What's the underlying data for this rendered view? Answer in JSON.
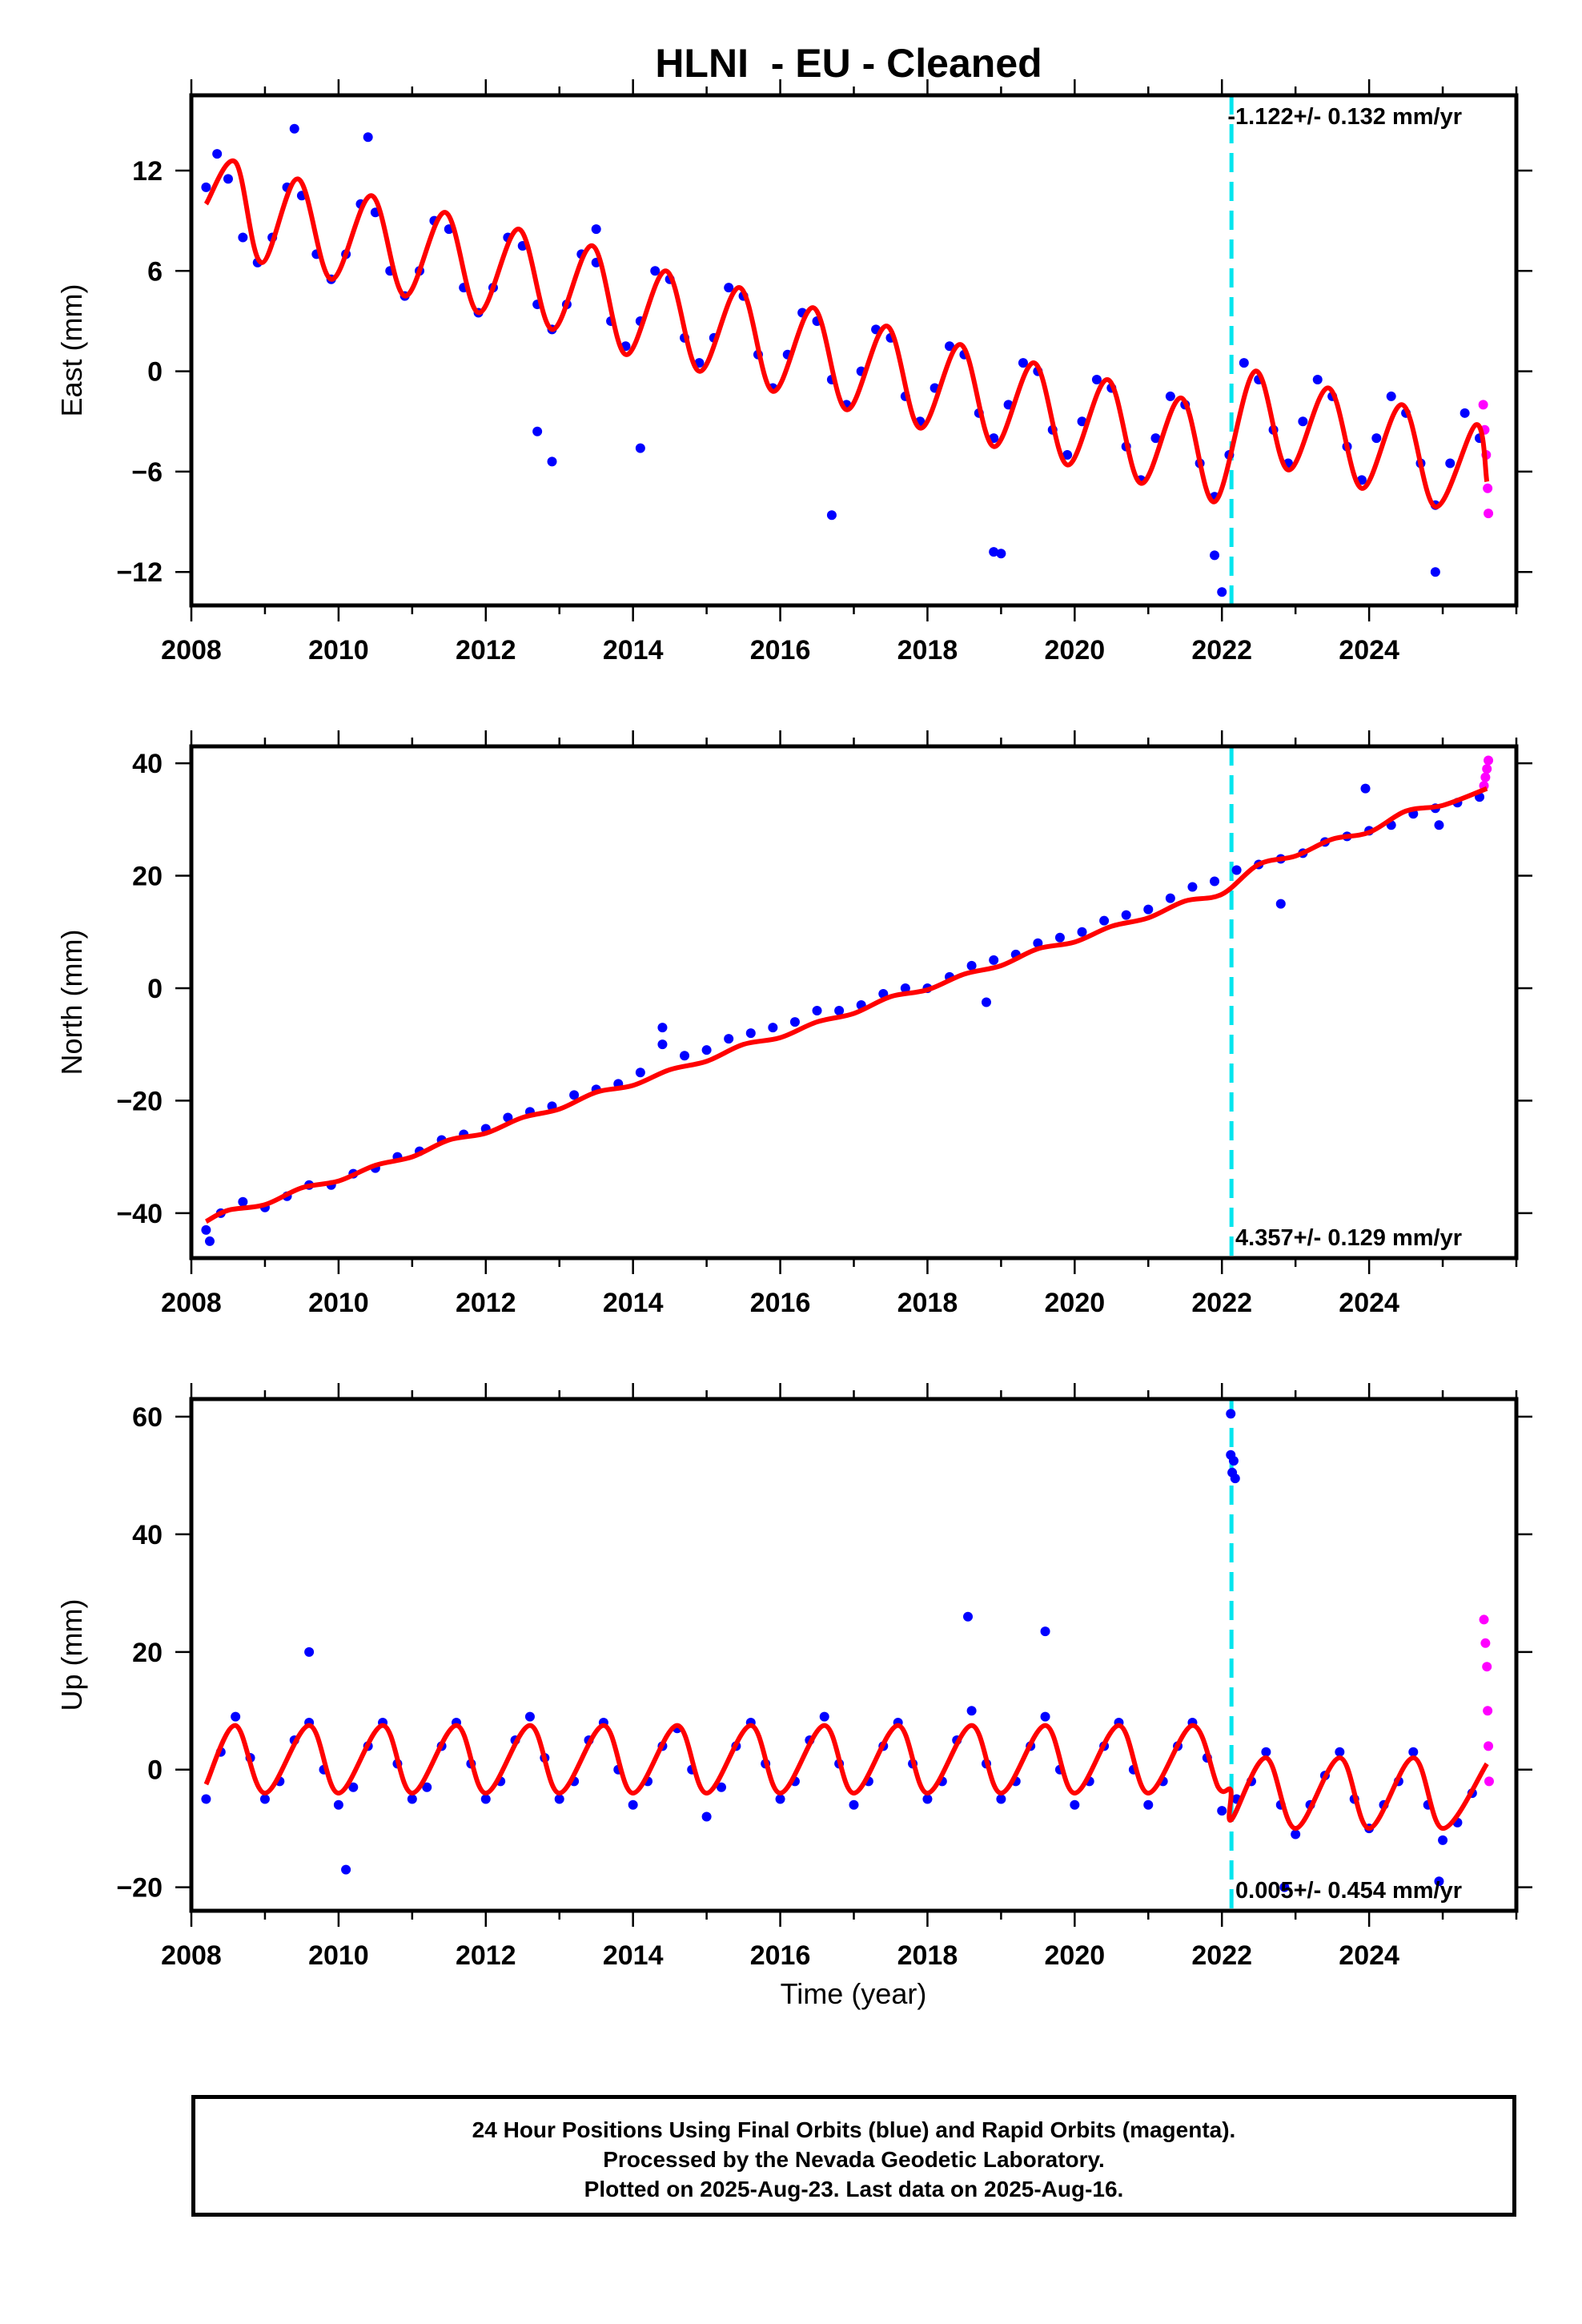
{
  "title": "HLNI  - EU - Cleaned",
  "xlabel": "Time (year)",
  "caption": [
    "24 Hour Positions Using Final Orbits (blue) and Rapid Orbits (magenta).",
    "Processed by the Nevada Geodetic Laboratory.",
    "Plotted on 2025-Aug-23. Last data on 2025-Aug-16."
  ],
  "colors": {
    "final": "#0000ff",
    "rapid": "#ff00ff",
    "model": "#ff0000",
    "event": "#00e5ee",
    "axis": "#000000"
  },
  "chart_data": [
    {
      "type": "scatter",
      "component": "East",
      "ylabel": "East (mm)",
      "rate_label": "-1.122+/- 0.132 mm/yr",
      "rate_position": "top-right",
      "xlim": [
        2008.0,
        2026.0
      ],
      "ylim": [
        -14,
        16.5
      ],
      "xticks": [
        2008,
        2010,
        2012,
        2014,
        2016,
        2018,
        2020,
        2022,
        2024
      ],
      "yticks": [
        -12,
        -6,
        0,
        6,
        12
      ],
      "event_line_x": 2022.13,
      "series": [
        {
          "role": "model",
          "x": [
            2008.2,
            2008.6,
            2008.95,
            2009.45,
            2009.9,
            2010.45,
            2010.9,
            2011.45,
            2011.9,
            2012.45,
            2012.9,
            2013.45,
            2013.9,
            2014.45,
            2014.9,
            2015.45,
            2015.9,
            2016.45,
            2016.9,
            2017.45,
            2017.9,
            2018.45,
            2018.9,
            2019.45,
            2019.9,
            2020.45,
            2020.9,
            2021.45,
            2021.9,
            2022.45,
            2022.9,
            2023.45,
            2023.9,
            2024.45,
            2024.9,
            2025.45,
            2025.6
          ],
          "y": [
            10,
            12.5,
            6.5,
            11.5,
            5.5,
            10.5,
            4.5,
            9.5,
            3.5,
            8.5,
            2.5,
            7.5,
            1,
            6,
            0,
            5,
            -1.2,
            3.8,
            -2.3,
            2.7,
            -3.4,
            1.6,
            -4.5,
            0.5,
            -5.6,
            -0.5,
            -6.7,
            -1.6,
            -7.8,
            0,
            -5.9,
            -1,
            -7,
            -2,
            -8.1,
            -3.2,
            -6.6
          ]
        },
        {
          "role": "final",
          "x": [
            2008.2,
            2008.35,
            2008.5,
            2008.7,
            2008.9,
            2009.1,
            2009.3,
            2009.5,
            2009.7,
            2009.9,
            2010.1,
            2010.3,
            2010.5,
            2010.7,
            2010.9,
            2011.1,
            2011.3,
            2011.5,
            2011.7,
            2011.9,
            2012.1,
            2012.3,
            2012.5,
            2012.7,
            2012.9,
            2013.1,
            2013.3,
            2013.5,
            2013.7,
            2013.9,
            2014.1,
            2014.3,
            2014.5,
            2014.7,
            2014.9,
            2015.1,
            2015.3,
            2015.5,
            2015.7,
            2015.9,
            2016.1,
            2016.3,
            2016.5,
            2016.7,
            2016.9,
            2017.1,
            2017.3,
            2017.5,
            2017.7,
            2017.9,
            2018.1,
            2018.3,
            2018.5,
            2018.7,
            2018.9,
            2019.1,
            2019.3,
            2019.5,
            2019.7,
            2019.9,
            2020.1,
            2020.3,
            2020.5,
            2020.7,
            2020.9,
            2021.1,
            2021.3,
            2021.5,
            2021.7,
            2021.9,
            2022.1,
            2022.3,
            2022.5,
            2022.7,
            2022.9,
            2023.1,
            2023.3,
            2023.5,
            2023.7,
            2023.9,
            2024.1,
            2024.3,
            2024.5,
            2024.7,
            2024.9,
            2025.1,
            2025.3,
            2025.5,
            2012.7,
            2012.9,
            2014.1,
            2018.9,
            2019.0,
            2016.7,
            2021.9,
            2024.9,
            2022.0,
            2013.5,
            2009.4,
            2010.4
          ],
          "y": [
            11,
            13,
            11.5,
            8,
            6.5,
            8,
            11,
            10.5,
            7,
            5.5,
            7,
            10,
            9.5,
            6,
            4.5,
            6,
            9,
            8.5,
            5,
            3.5,
            5,
            8,
            7.5,
            4,
            2.5,
            4,
            7,
            6.5,
            3,
            1.5,
            3,
            6,
            5.5,
            2,
            0.5,
            2,
            5,
            4.5,
            1,
            -1,
            1,
            3.5,
            3,
            -0.5,
            -2,
            0,
            2.5,
            2,
            -1.5,
            -3,
            -1,
            1.5,
            1,
            -2.5,
            -4,
            -2,
            0.5,
            0,
            -3.5,
            -5,
            -3,
            -0.5,
            -1,
            -4.5,
            -6.5,
            -4,
            -1.5,
            -2,
            -5.5,
            -7.5,
            -5,
            0.5,
            -0.5,
            -3.5,
            -5.5,
            -3,
            -0.5,
            -1.5,
            -4.5,
            -6.5,
            -4,
            -1.5,
            -2.5,
            -5.5,
            -8,
            -5.5,
            -2.5,
            -4,
            -3.6,
            -5.4,
            -4.6,
            -10.8,
            -10.9,
            -8.6,
            -11,
            -12,
            -13.2,
            8.5,
            14.5,
            14
          ]
        },
        {
          "role": "rapid",
          "x": [
            2025.55,
            2025.57,
            2025.59,
            2025.61,
            2025.62
          ],
          "y": [
            -2,
            -3.5,
            -5,
            -7,
            -8.5
          ]
        }
      ]
    },
    {
      "type": "scatter",
      "component": "North",
      "ylabel": "North (mm)",
      "rate_label": "4.357+/- 0.129 mm/yr",
      "rate_position": "bottom-right",
      "xlim": [
        2008.0,
        2026.0
      ],
      "ylim": [
        -48,
        43
      ],
      "xticks": [
        2008,
        2010,
        2012,
        2014,
        2016,
        2018,
        2020,
        2022,
        2024
      ],
      "yticks": [
        -40,
        -20,
        0,
        20,
        40
      ],
      "event_line_x": 2022.13,
      "series": [
        {
          "role": "model",
          "x": [
            2008.2,
            2008.5,
            2009.0,
            2009.5,
            2010.0,
            2010.5,
            2011.0,
            2011.5,
            2012.0,
            2012.5,
            2013.0,
            2013.5,
            2014.0,
            2014.5,
            2015.0,
            2015.5,
            2016.0,
            2016.5,
            2017.0,
            2017.5,
            2018.0,
            2018.5,
            2019.0,
            2019.5,
            2020.0,
            2020.5,
            2021.0,
            2021.5,
            2022.0,
            2022.5,
            2023.0,
            2023.5,
            2024.0,
            2024.5,
            2025.0,
            2025.6
          ],
          "y": [
            -41.5,
            -39.5,
            -38.5,
            -35.5,
            -34.3,
            -31.5,
            -30,
            -27,
            -25.8,
            -23,
            -21.5,
            -18.5,
            -17.3,
            -14.5,
            -13,
            -10,
            -8.8,
            -6,
            -4.5,
            -1.5,
            -0.3,
            2.5,
            4,
            7,
            8.2,
            11,
            12.5,
            15.5,
            16.7,
            22,
            23.5,
            26.5,
            27.7,
            31.5,
            32.5,
            35.5
          ]
        },
        {
          "role": "final",
          "x": [
            2008.2,
            2008.4,
            2008.7,
            2009.0,
            2009.3,
            2009.6,
            2009.9,
            2010.2,
            2010.5,
            2010.8,
            2011.1,
            2011.4,
            2011.7,
            2012.0,
            2012.3,
            2012.6,
            2012.9,
            2013.2,
            2013.5,
            2013.8,
            2014.1,
            2014.4,
            2014.7,
            2015.0,
            2015.3,
            2015.6,
            2015.9,
            2016.2,
            2016.5,
            2016.8,
            2017.1,
            2017.4,
            2017.7,
            2018.0,
            2018.3,
            2018.6,
            2018.9,
            2019.2,
            2019.5,
            2019.8,
            2020.1,
            2020.4,
            2020.7,
            2021.0,
            2021.3,
            2021.6,
            2021.9,
            2022.2,
            2022.5,
            2022.8,
            2023.1,
            2023.4,
            2023.7,
            2024.0,
            2024.3,
            2024.6,
            2024.9,
            2025.2,
            2025.5,
            2008.25,
            2014.4,
            2018.8,
            2022.8,
            2023.95,
            2024.95
          ],
          "y": [
            -43,
            -40,
            -38,
            -39,
            -37,
            -35,
            -35,
            -33,
            -32,
            -30,
            -29,
            -27,
            -26,
            -25,
            -23,
            -22,
            -21,
            -19,
            -18,
            -17,
            -15,
            -10,
            -12,
            -11,
            -9,
            -8,
            -7,
            -6,
            -4,
            -4,
            -3,
            -1,
            0,
            0,
            2,
            4,
            5,
            6,
            8,
            9,
            10,
            12,
            13,
            14,
            16,
            18,
            19,
            21,
            22,
            23,
            24,
            26,
            27,
            28,
            29,
            31,
            32,
            33,
            34,
            -45,
            -7,
            -2.5,
            15,
            35.5,
            29
          ]
        },
        {
          "role": "rapid",
          "x": [
            2025.56,
            2025.58,
            2025.6,
            2025.62
          ],
          "y": [
            36,
            37.5,
            39,
            40.5
          ]
        }
      ]
    },
    {
      "type": "scatter",
      "component": "Up",
      "ylabel": "Up (mm)",
      "rate_label": "0.005+/- 0.454 mm/yr",
      "rate_position": "bottom-right",
      "xlim": [
        2008.0,
        2026.0
      ],
      "ylim": [
        -24,
        63
      ],
      "xticks": [
        2008,
        2010,
        2012,
        2014,
        2016,
        2018,
        2020,
        2022,
        2024
      ],
      "yticks": [
        -20,
        0,
        20,
        40,
        60
      ],
      "event_line_x": 2022.13,
      "series": [
        {
          "role": "model",
          "x": [
            2008.2,
            2008.6,
            2009.0,
            2009.6,
            2010.0,
            2010.6,
            2011.0,
            2011.6,
            2012.0,
            2012.6,
            2013.0,
            2013.6,
            2014.0,
            2014.6,
            2015.0,
            2015.6,
            2016.0,
            2016.6,
            2017.0,
            2017.6,
            2018.0,
            2018.6,
            2019.0,
            2019.6,
            2020.0,
            2020.6,
            2021.0,
            2021.6,
            2021.95,
            2022.12,
            2022.13,
            2022.6,
            2023.0,
            2023.6,
            2024.0,
            2024.6,
            2025.0,
            2025.6
          ],
          "y": [
            -2.5,
            7.5,
            -4,
            7.5,
            -4,
            7.5,
            -4,
            7.5,
            -4,
            7.5,
            -4,
            7.5,
            -4,
            7.5,
            -4,
            7.5,
            -4,
            7.5,
            -4,
            7.5,
            -4,
            7.5,
            -4,
            7.5,
            -4,
            7.5,
            -4,
            7.5,
            -3,
            -3.5,
            -8.5,
            2,
            -10,
            2,
            -10,
            2,
            -10,
            1
          ]
        },
        {
          "role": "final",
          "x": [
            2008.2,
            2008.4,
            2008.6,
            2008.8,
            2009.0,
            2009.2,
            2009.4,
            2009.6,
            2009.8,
            2010.0,
            2010.2,
            2010.4,
            2010.6,
            2010.8,
            2011.0,
            2011.2,
            2011.4,
            2011.6,
            2011.8,
            2012.0,
            2012.2,
            2012.4,
            2012.6,
            2012.8,
            2013.0,
            2013.2,
            2013.4,
            2013.6,
            2013.8,
            2014.0,
            2014.2,
            2014.4,
            2014.6,
            2014.8,
            2015.0,
            2015.2,
            2015.4,
            2015.6,
            2015.8,
            2016.0,
            2016.2,
            2016.4,
            2016.6,
            2016.8,
            2017.0,
            2017.2,
            2017.4,
            2017.6,
            2017.8,
            2018.0,
            2018.2,
            2018.4,
            2018.6,
            2018.8,
            2019.0,
            2019.2,
            2019.4,
            2019.6,
            2019.8,
            2020.0,
            2020.2,
            2020.4,
            2020.6,
            2020.8,
            2021.0,
            2021.2,
            2021.4,
            2021.6,
            2021.8,
            2022.0,
            2022.2,
            2022.4,
            2022.6,
            2022.8,
            2023.0,
            2023.2,
            2023.4,
            2023.6,
            2023.8,
            2024.0,
            2024.2,
            2024.4,
            2024.6,
            2024.8,
            2025.0,
            2025.2,
            2025.4,
            2009.6,
            2018.55,
            2019.6,
            2010.1,
            2024.95,
            2022.85,
            2022.12,
            2022.12,
            2022.14,
            2022.16,
            2022.18
          ],
          "y": [
            -5,
            3,
            9,
            2,
            -5,
            -2,
            5,
            8,
            0,
            -6,
            -3,
            4,
            8,
            1,
            -5,
            -3,
            4,
            8,
            1,
            -5,
            -2,
            5,
            9,
            2,
            -5,
            -2,
            5,
            8,
            0,
            -6,
            -2,
            4,
            7,
            0,
            -8,
            -3,
            4,
            8,
            1,
            -5,
            -2,
            5,
            9,
            1,
            -6,
            -2,
            4,
            8,
            1,
            -5,
            -2,
            5,
            10,
            1,
            -5,
            -2,
            4,
            9,
            0,
            -6,
            -2,
            4,
            8,
            0,
            -6,
            -2,
            4,
            8,
            2,
            -7,
            -5,
            -2,
            3,
            -6,
            -11,
            -6,
            -1,
            3,
            -5,
            -10,
            -6,
            -2,
            3,
            -6,
            -12,
            -9,
            -4,
            20,
            26,
            23.5,
            -17,
            -19,
            -20,
            60.5,
            53.5,
            50.5,
            52.5,
            49.5
          ]
        },
        {
          "role": "rapid",
          "x": [
            2025.56,
            2025.58,
            2025.6,
            2025.61,
            2025.62,
            2025.63
          ],
          "y": [
            25.5,
            21.5,
            17.5,
            10,
            4,
            -2
          ]
        }
      ]
    }
  ]
}
